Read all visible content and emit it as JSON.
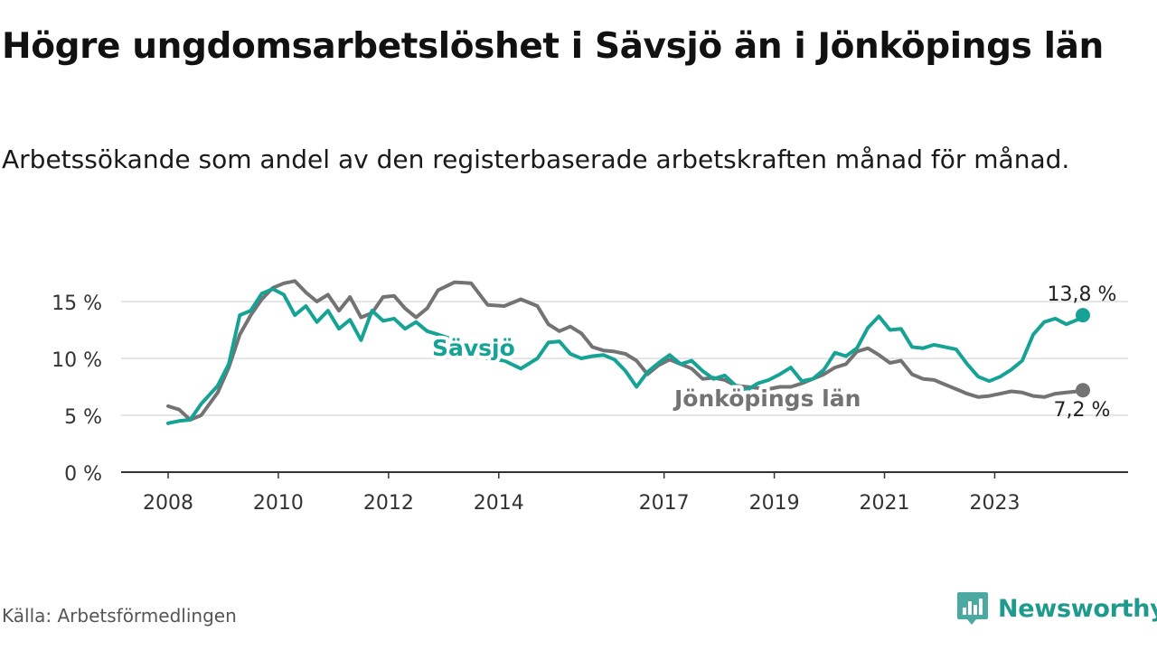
{
  "title": "Högre ungdomsarbetslöshet i Sävsjö än i Jönköpings län",
  "subtitle": "Arbetssökande som andel av den registerbaserade arbetskraften månad för månad.",
  "source": "Källa: Arbetsförmedlingen",
  "brand": {
    "name": "Newsworthy",
    "color": "#1f9a8c"
  },
  "chart_data": {
    "type": "line",
    "title": "Högre ungdomsarbetslöshet i Sävsjö än i Jönköpings län",
    "xlabel": "",
    "ylabel": "",
    "ylim": [
      0,
      15
    ],
    "xlim": [
      2008,
      2024.6
    ],
    "grid": true,
    "y_ticks": [
      0,
      5,
      10,
      15
    ],
    "y_tick_labels": [
      "0 %",
      "5 %",
      "10 %",
      "15 %"
    ],
    "x_ticks": [
      2008,
      2010,
      2012,
      2014,
      2017,
      2019,
      2021,
      2023
    ],
    "x_tick_labels": [
      "2008",
      "2010",
      "2012",
      "2014",
      "2017",
      "2019",
      "2021",
      "2023"
    ],
    "series": [
      {
        "name": "Sävsjö",
        "label": "Sävsjö",
        "color": "#16a396",
        "end_label": "13,8 %",
        "x": [
          2008.0,
          2008.2,
          2008.4,
          2008.6,
          2008.9,
          2009.1,
          2009.3,
          2009.5,
          2009.7,
          2009.9,
          2010.1,
          2010.3,
          2010.5,
          2010.7,
          2010.9,
          2011.1,
          2011.3,
          2011.5,
          2011.7,
          2011.9,
          2012.1,
          2012.3,
          2012.5,
          2012.7,
          2012.9,
          2013.2,
          2013.5,
          2013.8,
          2014.1,
          2014.4,
          2014.7,
          2014.9,
          2015.1,
          2015.3,
          2015.5,
          2015.7,
          2015.9,
          2016.1,
          2016.3,
          2016.5,
          2016.7,
          2016.9,
          2017.1,
          2017.3,
          2017.5,
          2017.7,
          2017.9,
          2018.1,
          2018.3,
          2018.5,
          2018.7,
          2018.9,
          2019.1,
          2019.3,
          2019.5,
          2019.7,
          2019.9,
          2020.1,
          2020.3,
          2020.5,
          2020.7,
          2020.9,
          2021.1,
          2021.3,
          2021.5,
          2021.7,
          2021.9,
          2022.1,
          2022.3,
          2022.5,
          2022.7,
          2022.9,
          2023.1,
          2023.3,
          2023.5,
          2023.7,
          2023.9,
          2024.1,
          2024.3,
          2024.5,
          2024.6
        ],
        "values": [
          4.3,
          4.5,
          4.6,
          6.0,
          7.6,
          9.5,
          13.8,
          14.2,
          15.7,
          16.1,
          15.6,
          13.8,
          14.6,
          13.2,
          14.2,
          12.6,
          13.4,
          11.6,
          14.2,
          13.3,
          13.5,
          12.6,
          13.2,
          12.4,
          12.1,
          11.6,
          10.5,
          10.0,
          9.8,
          9.1,
          10.0,
          11.4,
          11.5,
          10.4,
          10.0,
          10.2,
          10.3,
          9.9,
          8.9,
          7.5,
          8.8,
          9.6,
          10.3,
          9.5,
          9.8,
          8.9,
          8.2,
          8.5,
          7.6,
          7.2,
          7.8,
          8.1,
          8.6,
          9.2,
          8.0,
          8.2,
          9.0,
          10.5,
          10.2,
          10.9,
          12.7,
          13.7,
          12.5,
          12.6,
          11.0,
          10.9,
          11.2,
          11.0,
          10.8,
          9.5,
          8.4,
          8.0,
          8.4,
          9.0,
          9.8,
          12.1,
          13.2,
          13.5,
          13.0,
          13.4,
          13.8
        ]
      },
      {
        "name": "Jönköpings län",
        "label": "Jönköpings län",
        "color": "#737373",
        "end_label": "7,2 %",
        "x": [
          2008.0,
          2008.2,
          2008.4,
          2008.6,
          2008.9,
          2009.1,
          2009.3,
          2009.5,
          2009.7,
          2009.9,
          2010.1,
          2010.3,
          2010.5,
          2010.7,
          2010.9,
          2011.1,
          2011.3,
          2011.5,
          2011.7,
          2011.9,
          2012.1,
          2012.3,
          2012.5,
          2012.7,
          2012.9,
          2013.2,
          2013.5,
          2013.8,
          2014.1,
          2014.4,
          2014.7,
          2014.9,
          2015.1,
          2015.3,
          2015.5,
          2015.7,
          2015.9,
          2016.1,
          2016.3,
          2016.5,
          2016.7,
          2016.9,
          2017.1,
          2017.3,
          2017.5,
          2017.7,
          2017.9,
          2018.1,
          2018.3,
          2018.5,
          2018.7,
          2018.9,
          2019.1,
          2019.3,
          2019.5,
          2019.7,
          2019.9,
          2020.1,
          2020.3,
          2020.5,
          2020.7,
          2020.9,
          2021.1,
          2021.3,
          2021.5,
          2021.7,
          2021.9,
          2022.1,
          2022.3,
          2022.5,
          2022.7,
          2022.9,
          2023.1,
          2023.3,
          2023.5,
          2023.7,
          2023.9,
          2024.1,
          2024.3,
          2024.5,
          2024.6
        ],
        "values": [
          5.8,
          5.5,
          4.6,
          5.0,
          7.0,
          9.2,
          12.1,
          13.8,
          15.2,
          16.2,
          16.6,
          16.8,
          15.8,
          15.0,
          15.6,
          14.2,
          15.4,
          13.6,
          14.0,
          15.4,
          15.5,
          14.4,
          13.6,
          14.4,
          16.0,
          16.7,
          16.6,
          14.7,
          14.6,
          15.2,
          14.6,
          13.0,
          12.4,
          12.8,
          12.2,
          11.0,
          10.7,
          10.6,
          10.4,
          9.8,
          8.6,
          9.4,
          9.9,
          9.5,
          9.1,
          8.2,
          8.3,
          8.1,
          7.6,
          7.5,
          7.4,
          7.3,
          7.5,
          7.5,
          7.8,
          8.2,
          8.6,
          9.2,
          9.5,
          10.6,
          10.9,
          10.3,
          9.6,
          9.8,
          8.6,
          8.2,
          8.1,
          7.7,
          7.3,
          6.9,
          6.6,
          6.7,
          6.9,
          7.1,
          7.0,
          6.7,
          6.6,
          6.9,
          7.0,
          7.1,
          7.2
        ]
      }
    ]
  }
}
